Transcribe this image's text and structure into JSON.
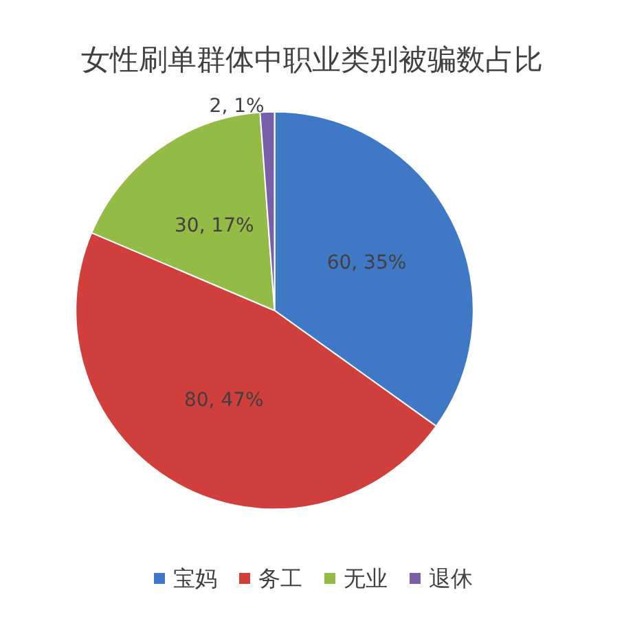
{
  "chart_data": {
    "type": "pie",
    "title": "女性刷单群体中职业类别被骗数占比",
    "categories": [
      "宝妈",
      "务工",
      "无业",
      "退休"
    ],
    "values": [
      60,
      80,
      30,
      2
    ],
    "colors": [
      "#3f78c4",
      "#d03f3c",
      "#93bb45",
      "#7b5ea8"
    ],
    "value_labels": [
      "60, 35%",
      "80, 47%",
      "30, 17%",
      "2, 1%"
    ],
    "legend": "bottom"
  }
}
